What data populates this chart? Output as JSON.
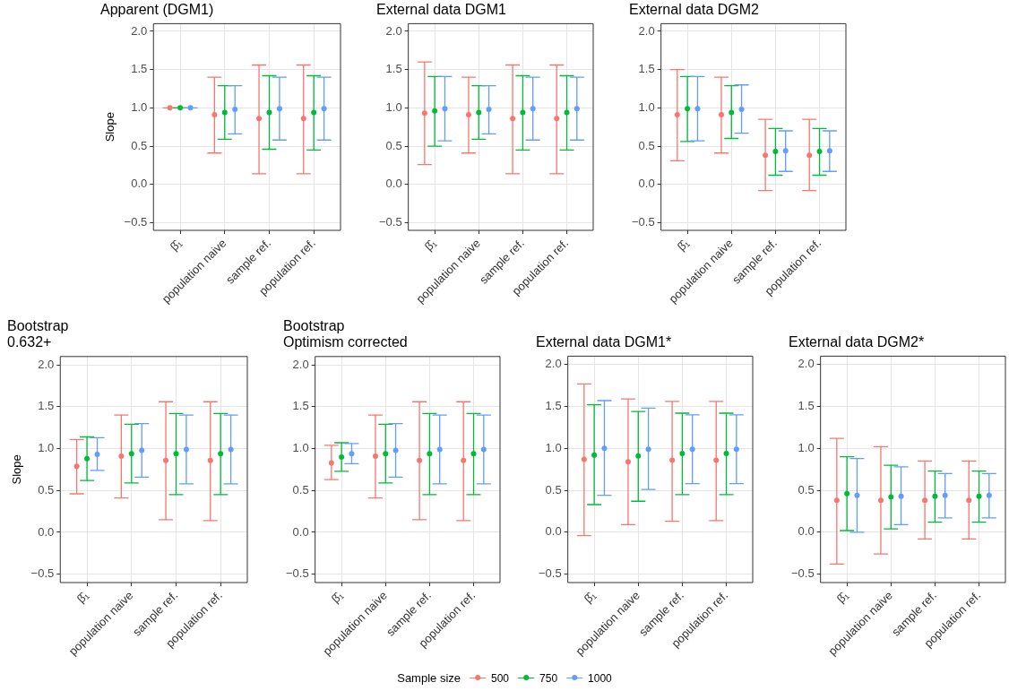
{
  "chart_data": [
    {
      "type": "scatter",
      "title": "Apparent (DGM1)",
      "ylabel": "Slope",
      "categories": [
        "β̂₁",
        "population naive",
        "sample ref.",
        "population ref."
      ],
      "ylim": [
        -0.6,
        2.1
      ],
      "yticks": [
        {
          "value": -0.5,
          "label": "−0.5"
        },
        {
          "value": 0,
          "label": "0.0"
        },
        {
          "value": 0.5,
          "label": "0.5"
        },
        {
          "value": 1,
          "label": "1.0"
        },
        {
          "value": 1.5,
          "label": "1.5"
        },
        {
          "value": 2,
          "label": "2.0"
        }
      ],
      "grid": true,
      "marker": "circle",
      "series": [
        {
          "color": "#f8766d",
          "values": [
            1.0,
            0.91,
            0.86,
            0.86
          ],
          "errors": [
            [
              1.0,
              1.0
            ],
            [
              0.41,
              1.4
            ],
            [
              0.14,
              1.56
            ],
            [
              0.14,
              1.56
            ]
          ]
        },
        {
          "color": "#00ba38",
          "values": [
            1.0,
            0.94,
            0.94,
            0.94
          ],
          "errors": [
            [
              1.0,
              1.0
            ],
            [
              0.59,
              1.29
            ],
            [
              0.46,
              1.42
            ],
            [
              0.45,
              1.42
            ]
          ]
        },
        {
          "color": "#619cff",
          "values": [
            1.0,
            0.98,
            0.99,
            0.99
          ],
          "errors": [
            [
              1.0,
              1.0
            ],
            [
              0.66,
              1.29
            ],
            [
              0.58,
              1.4
            ],
            [
              0.58,
              1.4
            ]
          ]
        }
      ]
    },
    {
      "type": "scatter",
      "title": "External data DGM1",
      "categories": [
        "β̂₁",
        "population naive",
        "sample ref.",
        "population ref."
      ],
      "ylim": [
        -0.6,
        2.1
      ],
      "yticks": [
        {
          "value": -0.5,
          "label": "−0.5"
        },
        {
          "value": 0,
          "label": "0.0"
        },
        {
          "value": 0.5,
          "label": "0.5"
        },
        {
          "value": 1,
          "label": "1.0"
        },
        {
          "value": 1.5,
          "label": "1.5"
        },
        {
          "value": 2,
          "label": "2.0"
        }
      ],
      "grid": true,
      "marker": "circle",
      "series": [
        {
          "color": "#f8766d",
          "values": [
            0.93,
            0.91,
            0.86,
            0.86
          ],
          "errors": [
            [
              0.26,
              1.6
            ],
            [
              0.41,
              1.4
            ],
            [
              0.14,
              1.56
            ],
            [
              0.14,
              1.56
            ]
          ]
        },
        {
          "color": "#00ba38",
          "values": [
            0.96,
            0.94,
            0.94,
            0.94
          ],
          "errors": [
            [
              0.5,
              1.41
            ],
            [
              0.59,
              1.29
            ],
            [
              0.45,
              1.42
            ],
            [
              0.45,
              1.42
            ]
          ]
        },
        {
          "color": "#619cff",
          "values": [
            0.99,
            0.98,
            0.99,
            0.99
          ],
          "errors": [
            [
              0.57,
              1.41
            ],
            [
              0.66,
              1.29
            ],
            [
              0.58,
              1.4
            ],
            [
              0.58,
              1.4
            ]
          ]
        }
      ]
    },
    {
      "type": "scatter",
      "title": "External data DGM2",
      "categories": [
        "β̂₁",
        "population naive",
        "sample ref.",
        "population ref."
      ],
      "ylim": [
        -0.6,
        2.1
      ],
      "yticks": [
        {
          "value": -0.5,
          "label": "−0.5"
        },
        {
          "value": 0,
          "label": "0.0"
        },
        {
          "value": 0.5,
          "label": "0.5"
        },
        {
          "value": 1,
          "label": "1.0"
        },
        {
          "value": 1.5,
          "label": "1.5"
        },
        {
          "value": 2,
          "label": "2.0"
        }
      ],
      "grid": true,
      "marker": "circle",
      "series": [
        {
          "color": "#f8766d",
          "values": [
            0.91,
            0.91,
            0.38,
            0.38
          ],
          "errors": [
            [
              0.31,
              1.5
            ],
            [
              0.41,
              1.4
            ],
            [
              -0.08,
              0.85
            ],
            [
              -0.08,
              0.85
            ]
          ]
        },
        {
          "color": "#00ba38",
          "values": [
            0.99,
            0.94,
            0.43,
            0.43
          ],
          "errors": [
            [
              0.56,
              1.41
            ],
            [
              0.6,
              1.29
            ],
            [
              0.12,
              0.73
            ],
            [
              0.12,
              0.73
            ]
          ]
        },
        {
          "color": "#619cff",
          "values": [
            0.99,
            0.98,
            0.44,
            0.44
          ],
          "errors": [
            [
              0.57,
              1.41
            ],
            [
              0.67,
              1.3
            ],
            [
              0.17,
              0.7
            ],
            [
              0.17,
              0.7
            ]
          ]
        }
      ]
    },
    {
      "type": "scatter",
      "title": "Bootstrap\n0.632+",
      "ylabel": "Slope",
      "categories": [
        "β̂₁",
        "population naive",
        "sample ref.",
        "population ref."
      ],
      "ylim": [
        -0.6,
        2.1
      ],
      "yticks": [
        {
          "value": -0.5,
          "label": "−0.5"
        },
        {
          "value": 0,
          "label": "0.0"
        },
        {
          "value": 0.5,
          "label": "0.5"
        },
        {
          "value": 1,
          "label": "1.0"
        },
        {
          "value": 1.5,
          "label": "1.5"
        },
        {
          "value": 2,
          "label": "2.0"
        }
      ],
      "grid": true,
      "marker": "circle",
      "series": [
        {
          "color": "#f8766d",
          "values": [
            0.79,
            0.91,
            0.86,
            0.86
          ],
          "errors": [
            [
              0.46,
              1.11
            ],
            [
              0.41,
              1.4
            ],
            [
              0.15,
              1.56
            ],
            [
              0.14,
              1.56
            ]
          ]
        },
        {
          "color": "#00ba38",
          "values": [
            0.88,
            0.94,
            0.94,
            0.94
          ],
          "errors": [
            [
              0.62,
              1.14
            ],
            [
              0.59,
              1.29
            ],
            [
              0.45,
              1.42
            ],
            [
              0.45,
              1.42
            ]
          ]
        },
        {
          "color": "#619cff",
          "values": [
            0.93,
            0.98,
            0.99,
            0.99
          ],
          "errors": [
            [
              0.74,
              1.13
            ],
            [
              0.66,
              1.3
            ],
            [
              0.58,
              1.4
            ],
            [
              0.58,
              1.4
            ]
          ]
        }
      ]
    },
    {
      "type": "scatter",
      "title": "Bootstrap\nOptimism corrected",
      "categories": [
        "β̂₁",
        "population naive",
        "sample ref.",
        "population ref."
      ],
      "ylim": [
        -0.6,
        2.1
      ],
      "yticks": [
        {
          "value": -0.5,
          "label": "−0.5"
        },
        {
          "value": 0,
          "label": "0.0"
        },
        {
          "value": 0.5,
          "label": "0.5"
        },
        {
          "value": 1,
          "label": "1.0"
        },
        {
          "value": 1.5,
          "label": "1.5"
        },
        {
          "value": 2,
          "label": "2.0"
        }
      ],
      "grid": true,
      "marker": "circle",
      "series": [
        {
          "color": "#f8766d",
          "values": [
            0.83,
            0.91,
            0.86,
            0.86
          ],
          "errors": [
            [
              0.63,
              1.04
            ],
            [
              0.41,
              1.4
            ],
            [
              0.15,
              1.56
            ],
            [
              0.14,
              1.56
            ]
          ]
        },
        {
          "color": "#00ba38",
          "values": [
            0.9,
            0.94,
            0.94,
            0.94
          ],
          "errors": [
            [
              0.73,
              1.07
            ],
            [
              0.59,
              1.29
            ],
            [
              0.45,
              1.42
            ],
            [
              0.45,
              1.42
            ]
          ]
        },
        {
          "color": "#619cff",
          "values": [
            0.94,
            0.98,
            0.99,
            0.99
          ],
          "errors": [
            [
              0.82,
              1.06
            ],
            [
              0.66,
              1.3
            ],
            [
              0.58,
              1.4
            ],
            [
              0.58,
              1.4
            ]
          ]
        }
      ]
    },
    {
      "type": "scatter",
      "title": "External data DGM1*",
      "categories": [
        "β̂₁",
        "population naive",
        "sample ref.",
        "population ref."
      ],
      "ylim": [
        -0.6,
        2.1
      ],
      "yticks": [
        {
          "value": -0.5,
          "label": "−0.5"
        },
        {
          "value": 0,
          "label": "0.0"
        },
        {
          "value": 0.5,
          "label": "0.5"
        },
        {
          "value": 1,
          "label": "1.0"
        },
        {
          "value": 1.5,
          "label": "1.5"
        },
        {
          "value": 2,
          "label": "2.0"
        }
      ],
      "grid": true,
      "marker": "circle",
      "series": [
        {
          "color": "#f8766d",
          "values": [
            0.87,
            0.84,
            0.86,
            0.86
          ],
          "errors": [
            [
              -0.04,
              1.77
            ],
            [
              0.09,
              1.59
            ],
            [
              0.13,
              1.56
            ],
            [
              0.14,
              1.56
            ]
          ]
        },
        {
          "color": "#00ba38",
          "values": [
            0.92,
            0.91,
            0.94,
            0.94
          ],
          "errors": [
            [
              0.33,
              1.52
            ],
            [
              0.37,
              1.44
            ],
            [
              0.45,
              1.42
            ],
            [
              0.45,
              1.42
            ]
          ]
        },
        {
          "color": "#619cff",
          "values": [
            1.0,
            0.99,
            0.99,
            0.99
          ],
          "errors": [
            [
              0.44,
              1.57
            ],
            [
              0.51,
              1.48
            ],
            [
              0.58,
              1.4
            ],
            [
              0.58,
              1.4
            ]
          ]
        }
      ]
    },
    {
      "type": "scatter",
      "title": "External data DGM2*",
      "categories": [
        "β̂₁",
        "population naive",
        "sample ref.",
        "population ref."
      ],
      "ylim": [
        -0.6,
        2.1
      ],
      "yticks": [
        {
          "value": -0.5,
          "label": "−0.5"
        },
        {
          "value": 0,
          "label": "0.0"
        },
        {
          "value": 0.5,
          "label": "0.5"
        },
        {
          "value": 1,
          "label": "1.0"
        },
        {
          "value": 1.5,
          "label": "1.5"
        },
        {
          "value": 2,
          "label": "2.0"
        }
      ],
      "grid": true,
      "marker": "circle",
      "legend": "bottom",
      "legend_title": "Sample size",
      "series": [
        {
          "name": "500",
          "color": "#f8766d",
          "values": [
            0.38,
            0.38,
            0.38,
            0.38
          ],
          "errors": [
            [
              -0.38,
              1.12
            ],
            [
              -0.26,
              1.02
            ],
            [
              -0.08,
              0.85
            ],
            [
              -0.08,
              0.85
            ]
          ]
        },
        {
          "name": "750",
          "color": "#00ba38",
          "values": [
            0.46,
            0.42,
            0.43,
            0.43
          ],
          "errors": [
            [
              0.02,
              0.9
            ],
            [
              0.04,
              0.8
            ],
            [
              0.12,
              0.73
            ],
            [
              0.12,
              0.73
            ]
          ]
        },
        {
          "name": "1000",
          "color": "#619cff",
          "values": [
            0.44,
            0.43,
            0.44,
            0.44
          ],
          "errors": [
            [
              0.0,
              0.88
            ],
            [
              0.09,
              0.78
            ],
            [
              0.17,
              0.7
            ],
            [
              0.17,
              0.7
            ]
          ]
        }
      ]
    }
  ]
}
